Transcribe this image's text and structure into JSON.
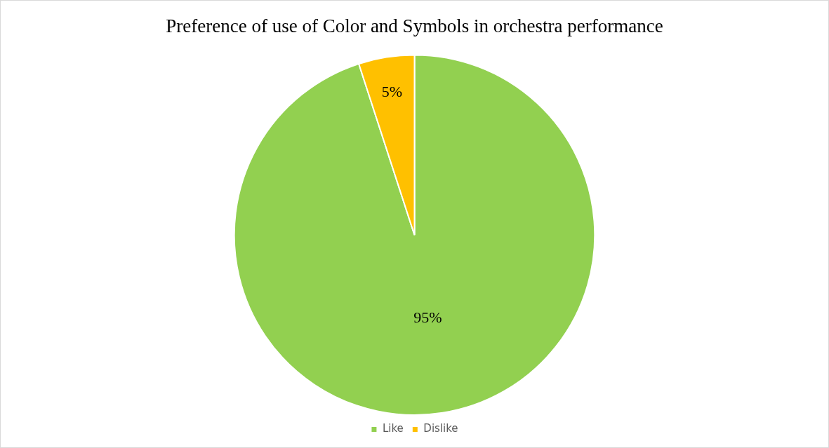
{
  "chart_data": {
    "type": "pie",
    "title": "Preference of use of Color and Symbols in orchestra performance",
    "categories": [
      "Like",
      "Dislike"
    ],
    "values": [
      95,
      5
    ],
    "colors": [
      "#92d050",
      "#ffc000"
    ],
    "value_labels": [
      "95%",
      "5%"
    ],
    "legend": "bottom"
  }
}
